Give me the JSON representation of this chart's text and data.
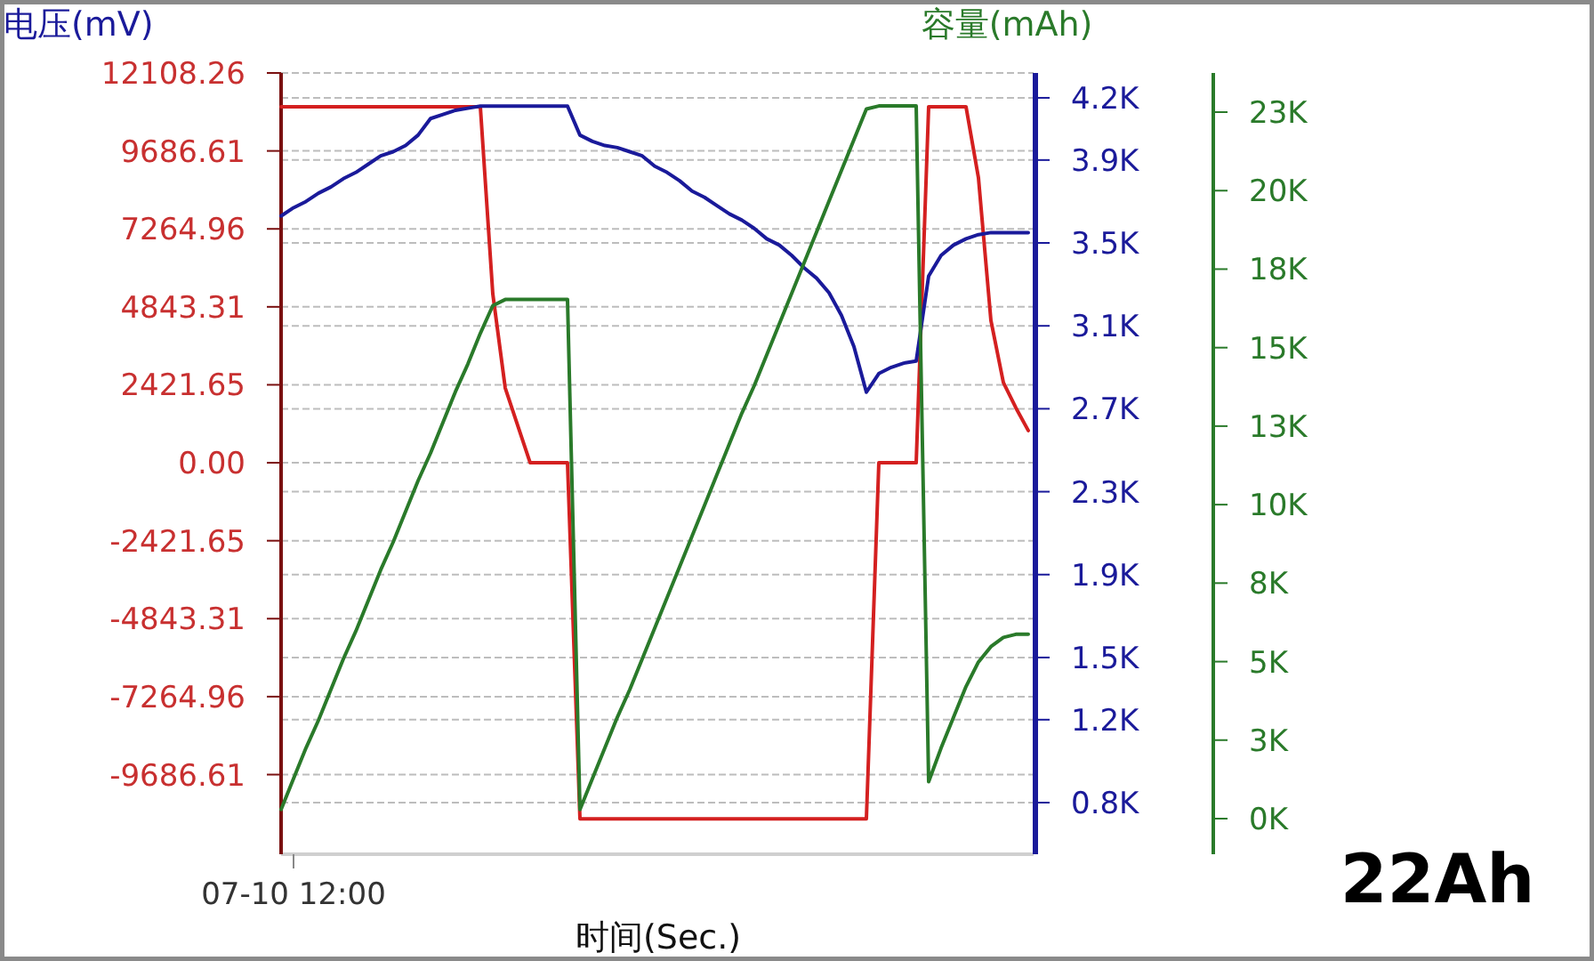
{
  "chart_data": {
    "type": "line",
    "ylabel": "电压(mV)",
    "y3label": "容量(mAh)",
    "xlabel": "时间(Sec.)",
    "annotations": [
      "22Ah"
    ],
    "categories": [
      null,
      "07-10 12:00",
      null,
      null,
      null,
      null,
      null,
      null,
      null,
      null,
      null,
      null,
      null,
      null,
      null,
      null,
      null,
      null,
      null,
      null,
      null,
      null,
      null,
      null,
      null,
      null,
      null,
      null,
      null,
      null,
      null,
      null,
      null,
      null,
      null,
      null,
      null,
      null,
      null,
      null,
      null,
      null,
      null,
      null,
      null,
      null,
      null,
      null,
      null,
      null,
      null,
      null,
      null,
      null,
      null,
      null,
      null,
      null,
      null,
      null,
      null
    ],
    "series": [
      {
        "color": "#d42020",
        "axis": "y",
        "values": [
          11060,
          11060,
          11060,
          11060,
          11060,
          11060,
          11060,
          11060,
          11060,
          11060,
          11060,
          11060,
          11060,
          11060,
          11060,
          11060,
          11060,
          5250,
          2320,
          1160,
          0,
          0,
          0,
          0,
          -11060,
          -11060,
          -11060,
          -11060,
          -11060,
          -11060,
          -11060,
          -11060,
          -11060,
          -11060,
          -11060,
          -11060,
          -11060,
          -11060,
          -11060,
          -11060,
          -11060,
          -11060,
          -11060,
          -11060,
          -11060,
          -11060,
          -11060,
          -11060,
          0,
          0,
          0,
          0,
          11060,
          11060,
          11060,
          11060,
          8850,
          4420,
          2490,
          1710,
          1000
        ]
      },
      {
        "color": "#1a1a9a",
        "axis": "y2",
        "values": [
          3630,
          3670,
          3700,
          3740,
          3770,
          3810,
          3840,
          3880,
          3920,
          3940,
          3970,
          4020,
          4100,
          4120,
          4140,
          4150,
          4160,
          4160,
          4160,
          4160,
          4160,
          4160,
          4160,
          4160,
          4020,
          3990,
          3970,
          3960,
          3940,
          3920,
          3870,
          3840,
          3800,
          3750,
          3720,
          3680,
          3640,
          3610,
          3570,
          3520,
          3490,
          3440,
          3380,
          3330,
          3260,
          3150,
          3000,
          2780,
          2870,
          2900,
          2920,
          2930,
          3340,
          3440,
          3490,
          3520,
          3540,
          3550,
          3550,
          3550,
          3550
        ]
      },
      {
        "color": "#2a7a2a",
        "axis": "y3",
        "values": [
          300,
          1300,
          2300,
          3200,
          4200,
          5200,
          6100,
          7100,
          8100,
          9000,
          10000,
          11000,
          11900,
          12900,
          13900,
          14800,
          15800,
          16700,
          16900,
          16900,
          16900,
          16900,
          16900,
          16900,
          300,
          1300,
          2300,
          3300,
          4200,
          5200,
          6200,
          7200,
          8200,
          9200,
          10200,
          11200,
          12200,
          13200,
          14100,
          15100,
          16100,
          17100,
          18100,
          19100,
          20100,
          21100,
          22100,
          23100,
          23200,
          23200,
          23200,
          23200,
          1200,
          2300,
          3300,
          4300,
          5100,
          5600,
          5900,
          6000,
          6000
        ]
      }
    ],
    "ylim": [
      -12160,
      12108.26
    ],
    "yticks": [
      12108.26,
      9686.61,
      7264.96,
      4843.31,
      2421.65,
      {
        "value": 0,
        "label": "0.00"
      },
      -2421.65,
      -4843.31,
      -7264.96,
      -9686.61
    ],
    "y2lim": [
      551,
      4320
    ],
    "y2ticks": [
      {
        "value": 4200,
        "label": "4.2K"
      },
      {
        "value": 3900,
        "label": "3.9K"
      },
      {
        "value": 3500,
        "label": "3.5K"
      },
      {
        "value": 3100,
        "label": "3.1K"
      },
      {
        "value": 2700,
        "label": "2.7K"
      },
      {
        "value": 2300,
        "label": "2.3K"
      },
      {
        "value": 1900,
        "label": "1.9K"
      },
      {
        "value": 1500,
        "label": "1.5K"
      },
      {
        "value": 1200,
        "label": "1.2K"
      },
      {
        "value": 800,
        "label": "0.8K"
      }
    ],
    "y3lim": [
      -1159,
      24275
    ],
    "y3ticks": [
      {
        "value": 23000,
        "label": "23K"
      },
      {
        "value": 20444,
        "label": "20K"
      },
      {
        "value": 17889,
        "label": "18K"
      },
      {
        "value": 15333,
        "label": "15K"
      },
      {
        "value": 12778,
        "label": "13K"
      },
      {
        "value": 10222,
        "label": "10K"
      },
      {
        "value": 7667,
        "label": "8K"
      },
      {
        "value": 5111,
        "label": "5K"
      },
      {
        "value": 2556,
        "label": "3K"
      },
      {
        "value": 0,
        "label": "0K"
      }
    ],
    "grid": "y",
    "line_style": "solid",
    "marker": "none"
  }
}
